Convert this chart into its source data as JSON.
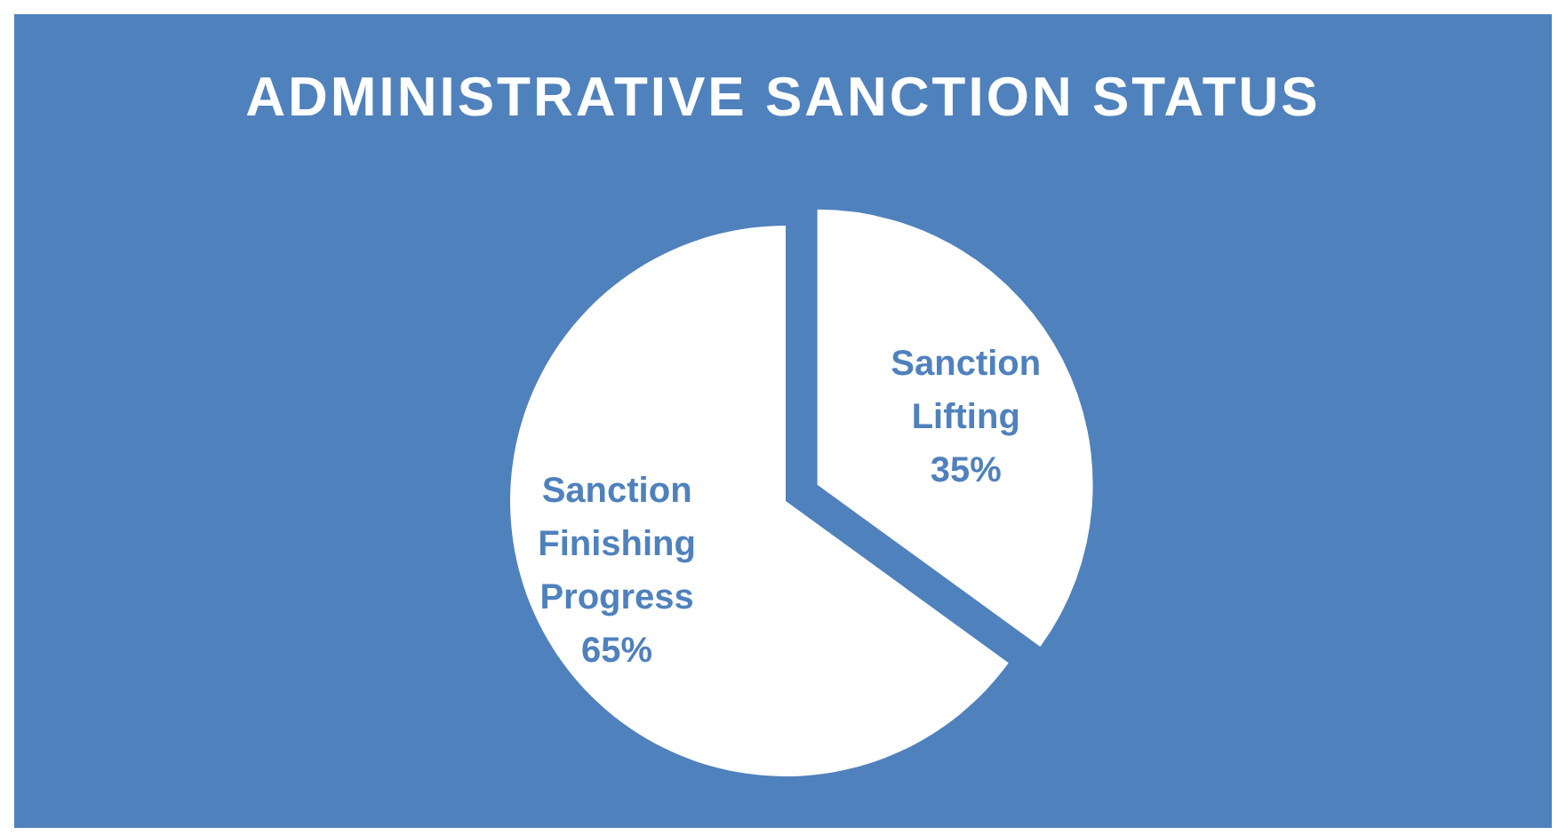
{
  "chart_data": {
    "type": "pie",
    "title": "ADMINISTRATIVE SANCTION STATUS",
    "categories": [
      "Sanction Lifting",
      "Sanction Finishing Progress"
    ],
    "values": [
      35,
      65
    ],
    "colors": [
      "#ffffff",
      "#ffffff"
    ],
    "value_labels": [
      "35%",
      "65%"
    ]
  }
}
